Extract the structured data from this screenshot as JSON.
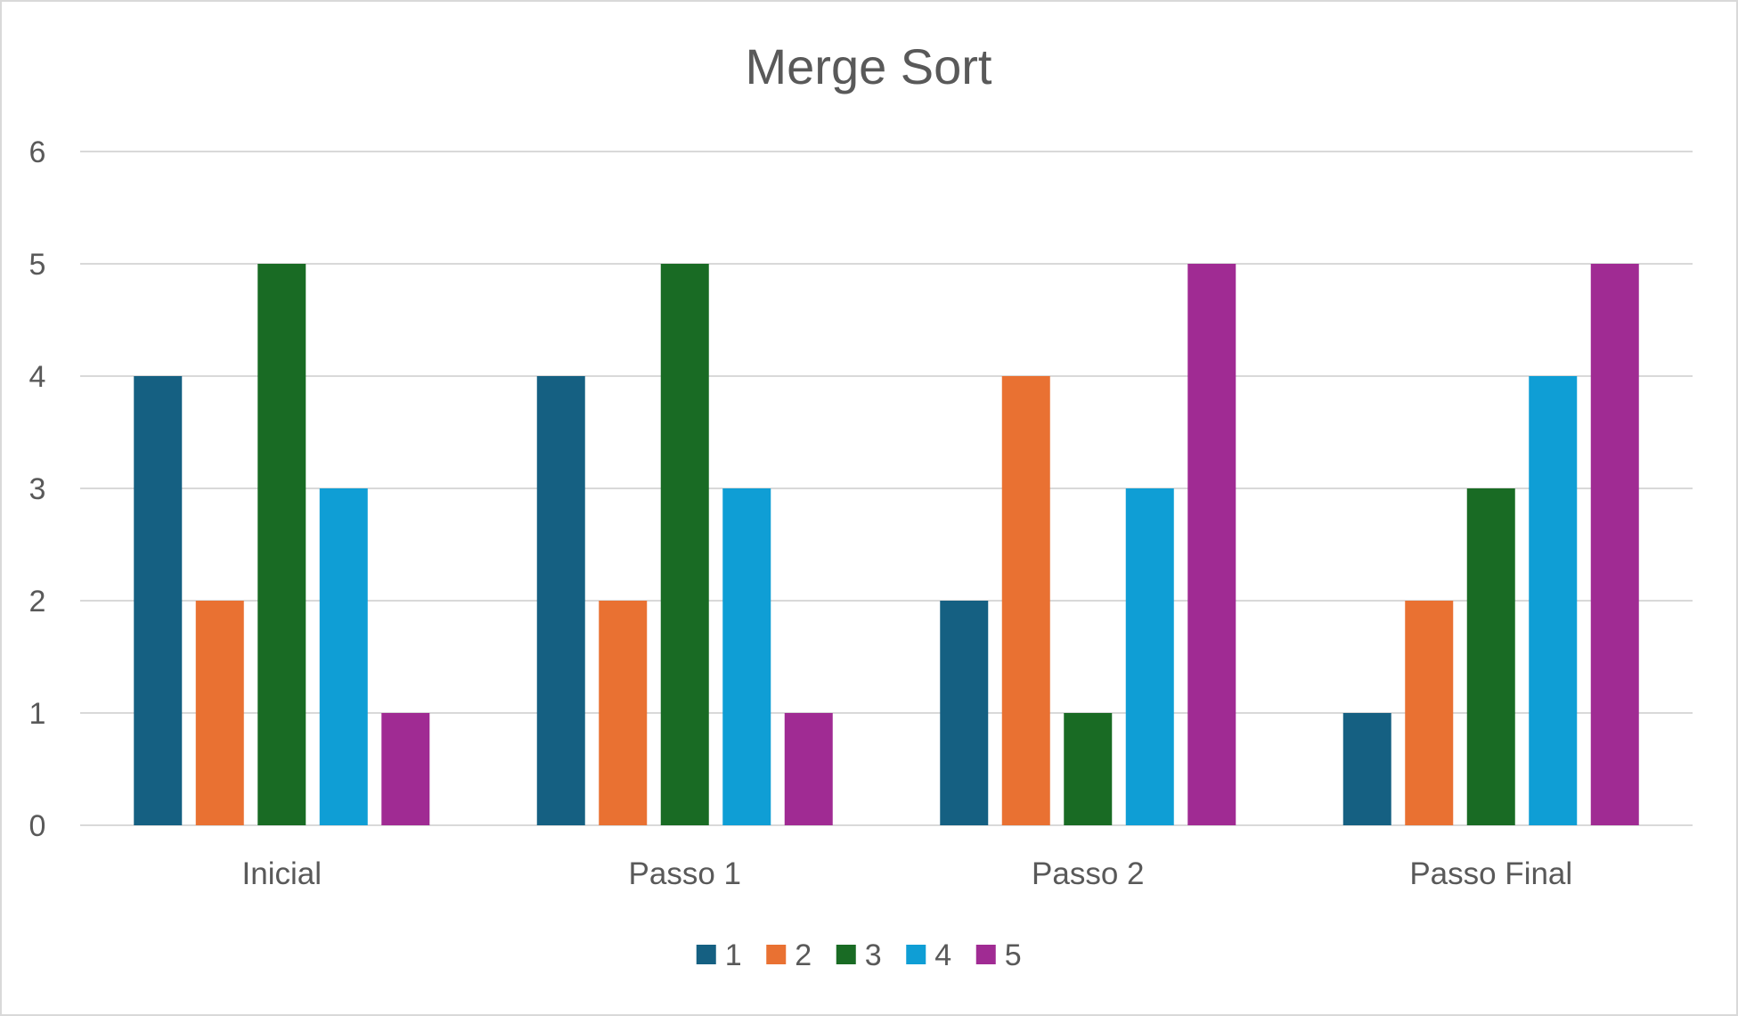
{
  "chart_data": {
    "type": "bar",
    "title": "Merge Sort",
    "categories": [
      "Inicial",
      "Passo 1",
      "Passo 2",
      "Passo Final"
    ],
    "series": [
      {
        "name": "1",
        "color": "#156082",
        "values": [
          4,
          4,
          2,
          1
        ]
      },
      {
        "name": "2",
        "color": "#E97132",
        "values": [
          2,
          2,
          4,
          2
        ]
      },
      {
        "name": "3",
        "color": "#196B24",
        "values": [
          5,
          5,
          1,
          3
        ]
      },
      {
        "name": "4",
        "color": "#0F9ED5",
        "values": [
          3,
          3,
          3,
          4
        ]
      },
      {
        "name": "5",
        "color": "#A02B93",
        "values": [
          1,
          1,
          5,
          5
        ]
      }
    ],
    "yticks": [
      "0",
      "1",
      "2",
      "3",
      "4",
      "5",
      "6"
    ],
    "ylim": [
      0,
      6
    ],
    "grid": true,
    "legend": "bottom",
    "xlabel": "",
    "ylabel": ""
  }
}
